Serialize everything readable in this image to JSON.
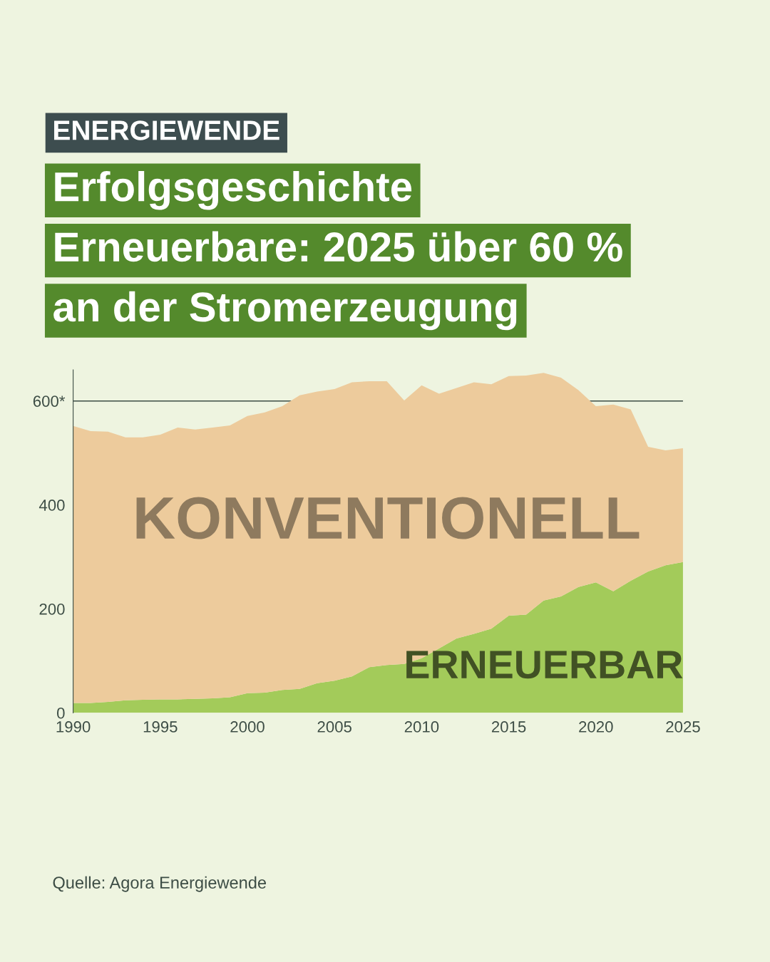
{
  "chart_data": {
    "type": "area",
    "stacked": true,
    "subtitle": "ENERGIEWENDE",
    "title": "Erfolgsgeschichte\nErneuerbare: 2025 über 60 %\nan der Stromerzeugung",
    "x": [
      1990,
      1991,
      1992,
      1993,
      1994,
      1995,
      1996,
      1997,
      1998,
      1999,
      2000,
      2001,
      2002,
      2003,
      2004,
      2005,
      2006,
      2007,
      2008,
      2009,
      2010,
      2011,
      2012,
      2013,
      2014,
      2015,
      2016,
      2017,
      2018,
      2019,
      2020,
      2021,
      2022,
      2023,
      2024,
      2025
    ],
    "series": [
      {
        "name": "ERNEUERBAR",
        "color": "#a3cb5a",
        "values": [
          19,
          19,
          21,
          24,
          25,
          26,
          26,
          27,
          28,
          30,
          38,
          39,
          44,
          46,
          57,
          62,
          70,
          88,
          92,
          94,
          105,
          124,
          143,
          152,
          162,
          187,
          189,
          216,
          224,
          242,
          251,
          234,
          254,
          272,
          284,
          290
        ]
      },
      {
        "name": "KONVENTIONELL",
        "color": "#edcb9c",
        "values": [
          533,
          523,
          520,
          506,
          505,
          509,
          523,
          518,
          521,
          523,
          533,
          539,
          546,
          565,
          561,
          561,
          566,
          550,
          546,
          507,
          525,
          490,
          482,
          484,
          470,
          461,
          460,
          438,
          421,
          379,
          339,
          359,
          330,
          240,
          221,
          219
        ]
      }
    ],
    "xlim": [
      1990,
      2025
    ],
    "xticks": [
      1990,
      1995,
      2000,
      2005,
      2010,
      2015,
      2020,
      2025
    ],
    "ylim": [
      0,
      660
    ],
    "yticks": [
      0,
      200,
      400,
      {
        "value": 600,
        "label": "600*"
      }
    ],
    "ref_lines": [
      {
        "axis": "y",
        "value": 600,
        "color": "#3d4d45"
      }
    ],
    "grid": false,
    "legend": false,
    "annotations": [
      "Quelle: Agora Energiewende"
    ]
  }
}
